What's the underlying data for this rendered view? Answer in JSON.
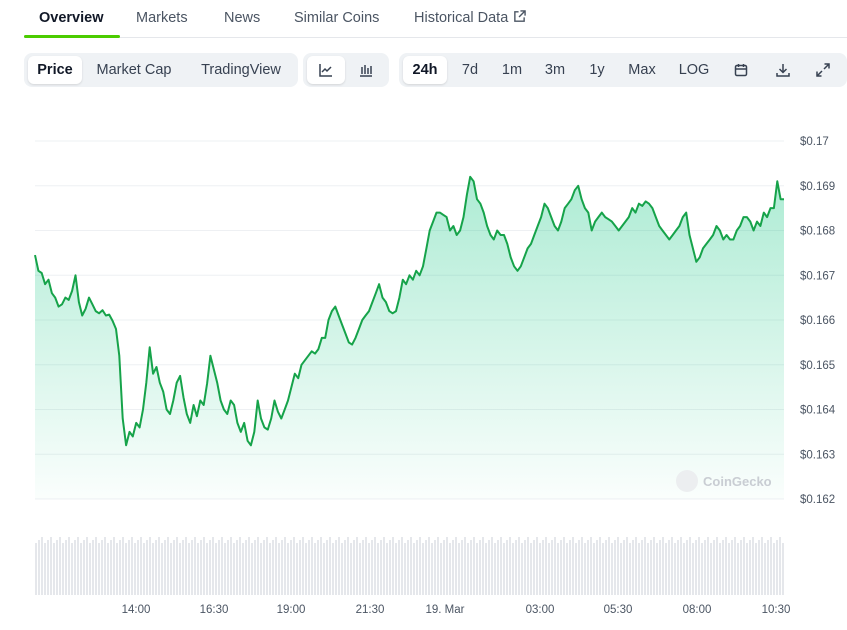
{
  "tabs": [
    {
      "label": "Overview",
      "active": true
    },
    {
      "label": "Markets"
    },
    {
      "label": "News"
    },
    {
      "label": "Similar Coins"
    },
    {
      "label": "Historical Data",
      "icon": "external-link-icon"
    }
  ],
  "toolbar": {
    "chart_modes": [
      "Price",
      "Market Cap",
      "TradingView"
    ],
    "chart_styles": [
      {
        "icon": "line-chart-icon",
        "active": true
      },
      {
        "icon": "candlestick-icon"
      }
    ],
    "ranges": [
      "24h",
      "7d",
      "1m",
      "3m",
      "1y",
      "Max",
      "LOG"
    ],
    "active_range": "24h",
    "tools": [
      "calendar-icon",
      "download-icon",
      "fullscreen-icon"
    ]
  },
  "watermark": "CoinGecko",
  "colors": {
    "line": "#16a34a",
    "fill_top": "#16c784",
    "accent_tab": "#4bcc00",
    "volume": "#e5e7eb"
  },
  "chart_data": {
    "type": "area",
    "title": "",
    "xlabel": "",
    "ylabel": "",
    "ylim": [
      0.162,
      0.17
    ],
    "yticks": [
      "$0.17",
      "$0.169",
      "$0.168",
      "$0.167",
      "$0.166",
      "$0.165",
      "$0.164",
      "$0.163",
      "$0.162"
    ],
    "xticks": [
      "14:00",
      "16:30",
      "19:00",
      "21:30",
      "19. Mar",
      "03:00",
      "05:30",
      "08:00",
      "10:30"
    ],
    "grid": true,
    "series": [
      {
        "values": [
          0.16745,
          0.1671,
          0.16705,
          0.1668,
          0.1669,
          0.1666,
          0.1665,
          0.1663,
          0.16635,
          0.1665,
          0.16645,
          0.16665,
          0.167,
          0.1664,
          0.1661,
          0.16625,
          0.1665,
          0.16635,
          0.1662,
          0.16615,
          0.16622,
          0.1661,
          0.16612,
          0.16598,
          0.1658,
          0.1652,
          0.1638,
          0.1632,
          0.1635,
          0.1634,
          0.1637,
          0.1636,
          0.164,
          0.1646,
          0.16539,
          0.1648,
          0.16495,
          0.1646,
          0.1644,
          0.164,
          0.1639,
          0.1642,
          0.1646,
          0.16475,
          0.16427,
          0.1639,
          0.1637,
          0.1641,
          0.16385,
          0.1642,
          0.1641,
          0.16458,
          0.1652,
          0.1649,
          0.1646,
          0.1642,
          0.164,
          0.1639,
          0.1642,
          0.1641,
          0.1637,
          0.1635,
          0.1637,
          0.1633,
          0.1632,
          0.1635,
          0.1642,
          0.1638,
          0.1636,
          0.16355,
          0.1638,
          0.1642,
          0.16395,
          0.1638,
          0.164,
          0.1642,
          0.1645,
          0.1648,
          0.1647,
          0.165,
          0.1651,
          0.1652,
          0.1653,
          0.16525,
          0.16535,
          0.1656,
          0.1656,
          0.166,
          0.1662,
          0.1663,
          0.1661,
          0.1659,
          0.1657,
          0.1655,
          0.16545,
          0.1656,
          0.1658,
          0.166,
          0.1661,
          0.1662,
          0.1664,
          0.1666,
          0.1668,
          0.1665,
          0.1664,
          0.1662,
          0.16615,
          0.1662,
          0.1665,
          0.1669,
          0.1668,
          0.167,
          0.1669,
          0.1671,
          0.167,
          0.1672,
          0.1676,
          0.168,
          0.1682,
          0.1684,
          0.1684,
          0.16835,
          0.1683,
          0.168,
          0.1681,
          0.1679,
          0.168,
          0.1683,
          0.1688,
          0.1692,
          0.1691,
          0.1687,
          0.1686,
          0.1684,
          0.1681,
          0.1679,
          0.1678,
          0.168,
          0.1679,
          0.1679,
          0.1677,
          0.1674,
          0.1672,
          0.1671,
          0.1672,
          0.1674,
          0.1676,
          0.1677,
          0.1679,
          0.1681,
          0.1683,
          0.1686,
          0.1685,
          0.1683,
          0.1681,
          0.168,
          0.1682,
          0.1685,
          0.1686,
          0.1687,
          0.1689,
          0.169,
          0.1687,
          0.1685,
          0.1684,
          0.168,
          0.1682,
          0.1683,
          0.1684,
          0.1683,
          0.16825,
          0.1682,
          0.1681,
          0.168,
          0.1681,
          0.1682,
          0.1683,
          0.1685,
          0.1684,
          0.1686,
          0.16855,
          0.16865,
          0.1686,
          0.1685,
          0.1683,
          0.1681,
          0.168,
          0.1679,
          0.1678,
          0.1679,
          0.168,
          0.1681,
          0.1683,
          0.1684,
          0.1679,
          0.1676,
          0.1673,
          0.1674,
          0.1676,
          0.1677,
          0.1678,
          0.1679,
          0.1681,
          0.168,
          0.1678,
          0.1679,
          0.1678,
          0.1678,
          0.168,
          0.1681,
          0.1683,
          0.1683,
          0.1682,
          0.168,
          0.1682,
          0.1681,
          0.1684,
          0.1683,
          0.1685,
          0.1685,
          0.1691,
          0.1687,
          0.1687
        ]
      }
    ]
  }
}
